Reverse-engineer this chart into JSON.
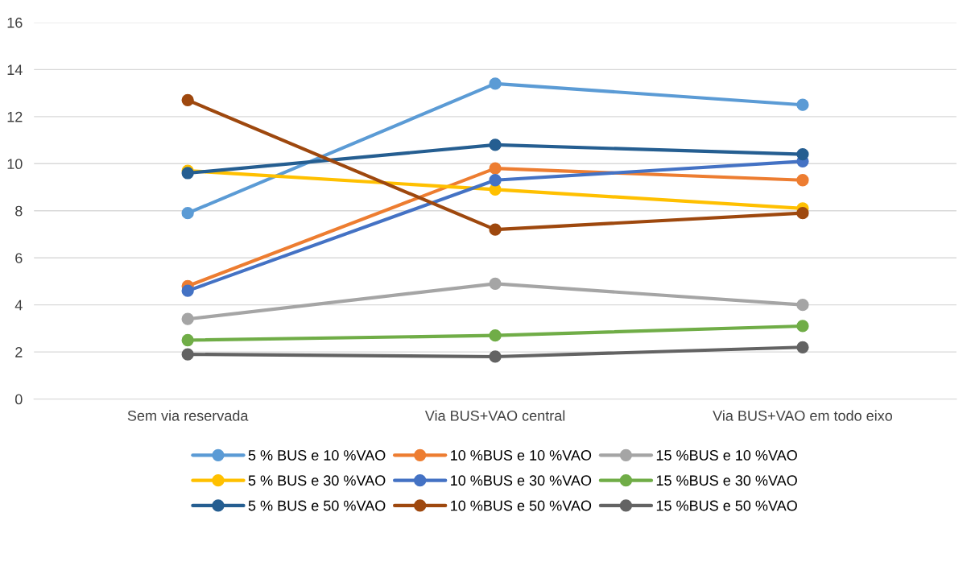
{
  "chart_data": {
    "type": "line",
    "categories": [
      "Sem via reservada",
      "Via BUS+VAO central",
      "Via BUS+VAO em todo eixo"
    ],
    "series": [
      {
        "name": "5 % BUS e 10 %VAO",
        "color": "#5b9bd5",
        "values": [
          7.9,
          13.4,
          12.5
        ]
      },
      {
        "name": "10 %BUS e 10 %VAO",
        "color": "#ed7d31",
        "values": [
          4.8,
          9.8,
          9.3
        ]
      },
      {
        "name": "15 %BUS e 10 %VAO",
        "color": "#a5a5a5",
        "values": [
          3.4,
          4.9,
          4.0
        ]
      },
      {
        "name": "5 % BUS e 30 %VAO",
        "color": "#ffc000",
        "values": [
          9.7,
          8.9,
          8.1
        ]
      },
      {
        "name": "10 %BUS e 30 %VAO",
        "color": "#4472c4",
        "values": [
          4.6,
          9.3,
          10.1
        ]
      },
      {
        "name": "15 %BUS e 30 %VAO",
        "color": "#70ad47",
        "values": [
          2.5,
          2.7,
          3.1
        ]
      },
      {
        "name": "5 % BUS e 50 %VAO",
        "color": "#255e91",
        "values": [
          9.6,
          10.8,
          10.4
        ]
      },
      {
        "name": "10 %BUS e 50 %VAO",
        "color": "#9e480e",
        "values": [
          12.7,
          7.2,
          7.9
        ]
      },
      {
        "name": "15 %BUS e 50 %VAO",
        "color": "#636363",
        "values": [
          1.9,
          1.8,
          2.2
        ]
      }
    ],
    "ylim": [
      0,
      16
    ],
    "yticks": [
      0,
      2,
      4,
      6,
      8,
      10,
      12,
      14,
      16
    ],
    "grid": "y",
    "legend": "bottom",
    "marker": "circle",
    "line_style": "solid"
  }
}
